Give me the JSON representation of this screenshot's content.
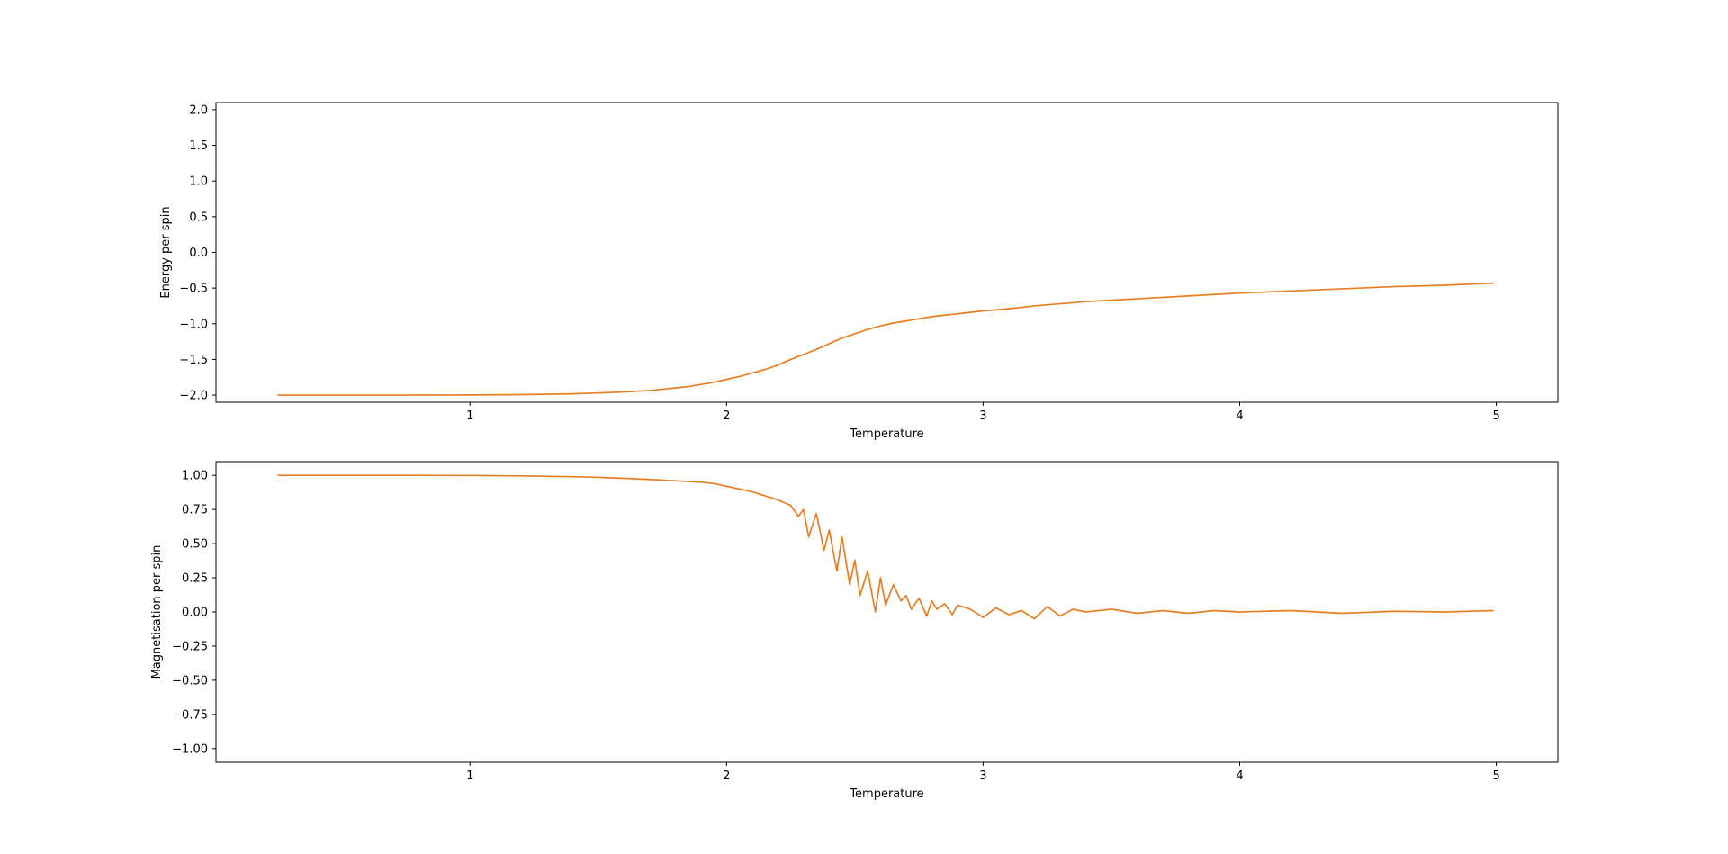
{
  "figure": {
    "line_color": "#e67e22"
  },
  "chart_data": [
    {
      "type": "line",
      "title": "",
      "xlabel": "Temperature",
      "ylabel": "Energy per spin",
      "xlim": [
        0.01,
        5.24
      ],
      "ylim": [
        -2.1,
        2.1
      ],
      "xticks": [
        1,
        2,
        3,
        4,
        5
      ],
      "xtick_labels": [
        "1",
        "2",
        "3",
        "4",
        "5"
      ],
      "yticks": [
        -2.0,
        -1.5,
        -1.0,
        -0.5,
        0.0,
        0.5,
        1.0,
        1.5,
        2.0
      ],
      "ytick_labels": [
        "−2.0",
        "−1.5",
        "−1.0",
        "−0.5",
        "0.0",
        "0.5",
        "1.0",
        "1.5",
        "2.0"
      ],
      "grid": false,
      "series": [
        {
          "x": [
            0.25,
            0.5,
            0.75,
            1.0,
            1.2,
            1.4,
            1.5,
            1.6,
            1.7,
            1.8,
            1.85,
            1.9,
            1.95,
            2.0,
            2.05,
            2.1,
            2.15,
            2.2,
            2.25,
            2.3,
            2.35,
            2.4,
            2.45,
            2.5,
            2.55,
            2.6,
            2.65,
            2.7,
            2.75,
            2.8,
            2.85,
            2.9,
            2.95,
            3.0,
            3.1,
            3.2,
            3.3,
            3.4,
            3.5,
            3.6,
            3.7,
            3.8,
            3.9,
            4.0,
            4.2,
            4.4,
            4.6,
            4.8,
            4.99
          ],
          "y": [
            -2.0,
            -2.0,
            -2.0,
            -1.998,
            -1.993,
            -1.982,
            -1.97,
            -1.955,
            -1.935,
            -1.9,
            -1.88,
            -1.85,
            -1.82,
            -1.78,
            -1.74,
            -1.69,
            -1.64,
            -1.58,
            -1.5,
            -1.43,
            -1.36,
            -1.28,
            -1.2,
            -1.14,
            -1.08,
            -1.03,
            -0.99,
            -0.96,
            -0.93,
            -0.9,
            -0.88,
            -0.86,
            -0.84,
            -0.82,
            -0.79,
            -0.75,
            -0.72,
            -0.69,
            -0.67,
            -0.65,
            -0.63,
            -0.61,
            -0.59,
            -0.57,
            -0.54,
            -0.51,
            -0.48,
            -0.46,
            -0.43
          ]
        }
      ]
    },
    {
      "type": "line",
      "title": "",
      "xlabel": "Temperature",
      "ylabel": "Magnetisation per spin",
      "xlim": [
        0.01,
        5.24
      ],
      "ylim": [
        -1.1,
        1.1
      ],
      "xticks": [
        1,
        2,
        3,
        4,
        5
      ],
      "xtick_labels": [
        "1",
        "2",
        "3",
        "4",
        "5"
      ],
      "yticks": [
        -1.0,
        -0.75,
        -0.5,
        -0.25,
        0.0,
        0.25,
        0.5,
        0.75,
        1.0
      ],
      "ytick_labels": [
        "−1.00",
        "−0.75",
        "−0.50",
        "−0.25",
        "0.00",
        "0.25",
        "0.50",
        "0.75",
        "1.00"
      ],
      "grid": false,
      "series": [
        {
          "x": [
            0.25,
            0.5,
            0.75,
            1.0,
            1.2,
            1.4,
            1.5,
            1.6,
            1.7,
            1.8,
            1.85,
            1.9,
            1.95,
            2.0,
            2.05,
            2.1,
            2.15,
            2.2,
            2.25,
            2.28,
            2.3,
            2.32,
            2.35,
            2.38,
            2.4,
            2.43,
            2.45,
            2.48,
            2.5,
            2.52,
            2.55,
            2.58,
            2.6,
            2.62,
            2.65,
            2.68,
            2.7,
            2.72,
            2.75,
            2.78,
            2.8,
            2.82,
            2.85,
            2.88,
            2.9,
            2.95,
            3.0,
            3.05,
            3.1,
            3.15,
            3.2,
            3.25,
            3.3,
            3.35,
            3.4,
            3.5,
            3.6,
            3.7,
            3.8,
            3.9,
            4.0,
            4.2,
            4.4,
            4.6,
            4.8,
            4.99
          ],
          "y": [
            1.0,
            1.0,
            1.0,
            0.999,
            0.996,
            0.99,
            0.985,
            0.978,
            0.97,
            0.96,
            0.955,
            0.95,
            0.94,
            0.92,
            0.9,
            0.88,
            0.85,
            0.82,
            0.78,
            0.7,
            0.75,
            0.55,
            0.72,
            0.45,
            0.6,
            0.3,
            0.55,
            0.2,
            0.38,
            0.12,
            0.3,
            0.0,
            0.25,
            0.05,
            0.2,
            0.08,
            0.12,
            0.02,
            0.1,
            -0.03,
            0.08,
            0.02,
            0.06,
            -0.02,
            0.05,
            0.02,
            -0.04,
            0.03,
            -0.02,
            0.01,
            -0.05,
            0.04,
            -0.03,
            0.02,
            0.0,
            0.02,
            -0.01,
            0.01,
            -0.01,
            0.01,
            0.0,
            0.01,
            -0.01,
            0.005,
            0.0,
            0.01
          ]
        }
      ]
    }
  ]
}
